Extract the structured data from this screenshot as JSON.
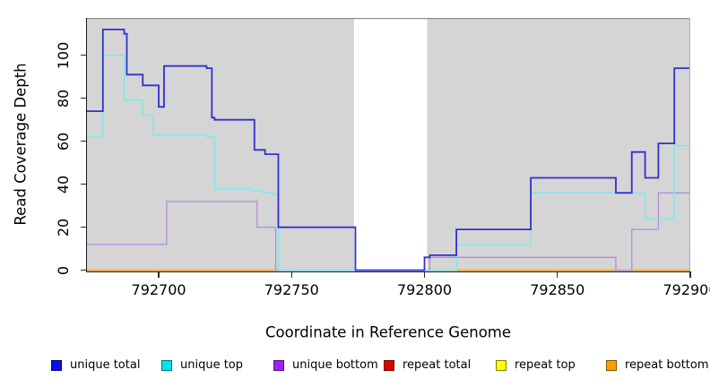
{
  "figure": {
    "y_axis_label": "Read Coverage Depth",
    "x_axis_label": "Coordinate in Reference Genome",
    "y_ticks": [
      "0",
      "20",
      "40",
      "60",
      "80",
      "100"
    ],
    "x_ticks": [
      "792700",
      "792750",
      "792800",
      "792850",
      "792900"
    ]
  },
  "legend": {
    "items": [
      {
        "label": "unique total",
        "color": "#0b0bee"
      },
      {
        "label": "unique top",
        "color": "#00e6f0"
      },
      {
        "label": "unique bottom",
        "color": "#a020f0"
      },
      {
        "label": "repeat total",
        "color": "#e00000"
      },
      {
        "label": "repeat top",
        "color": "#ffff00"
      },
      {
        "label": "repeat bottom",
        "color": "#ffa000"
      }
    ]
  },
  "chart_data": {
    "type": "line",
    "subtype": "step",
    "xlabel": "Coordinate in Reference Genome",
    "ylabel": "Read Coverage Depth",
    "xlim": [
      792673,
      792900
    ],
    "ylim": [
      0,
      117
    ],
    "x_tick_values": [
      792700,
      792750,
      792800,
      792850,
      792900
    ],
    "y_tick_values": [
      0,
      20,
      40,
      60,
      80,
      100
    ],
    "grid": false,
    "legend_position": "bottom",
    "plot_background": "#d5d5d5",
    "masked_region": {
      "x_start": 792773.5,
      "x_end": 792801,
      "color": "#ffffff"
    },
    "series": [
      {
        "name": "repeat total",
        "color": "#dd2020",
        "line_width": 1.2,
        "points": [
          [
            792673,
            0
          ]
        ]
      },
      {
        "name": "repeat top",
        "color": "#f0e800",
        "line_width": 1.2,
        "points": [
          [
            792673,
            0
          ]
        ]
      },
      {
        "name": "repeat bottom",
        "color": "#ff9d1c",
        "line_width": 1.6,
        "points": [
          [
            792673,
            0
          ]
        ]
      },
      {
        "name": "unique bottom",
        "color": "#b48cdb",
        "line_width": 1.3,
        "points": [
          [
            792673,
            12
          ],
          [
            792703,
            32
          ],
          [
            792737,
            20
          ],
          [
            792744,
            0
          ],
          [
            792802,
            6
          ],
          [
            792872,
            0
          ],
          [
            792878,
            19
          ],
          [
            792888,
            36
          ]
        ]
      },
      {
        "name": "unique top",
        "color": "#79e9ee",
        "line_width": 1.4,
        "points": [
          [
            792673,
            62
          ],
          [
            792679,
            100
          ],
          [
            792687,
            79
          ],
          [
            792694,
            72
          ],
          [
            792698,
            63
          ],
          [
            792718,
            62
          ],
          [
            792721,
            38
          ],
          [
            792735,
            37
          ],
          [
            792739,
            36
          ],
          [
            792743,
            35
          ],
          [
            792745,
            0
          ],
          [
            792812,
            12
          ],
          [
            792840,
            36
          ],
          [
            792883,
            24
          ],
          [
            792894,
            58
          ]
        ]
      },
      {
        "name": "unique total",
        "color": "#3030d0",
        "line_width": 1.8,
        "points": [
          [
            792673,
            74
          ],
          [
            792679,
            112
          ],
          [
            792687,
            110
          ],
          [
            792688,
            91
          ],
          [
            792694,
            86
          ],
          [
            792700,
            76
          ],
          [
            792702,
            95
          ],
          [
            792718,
            94
          ],
          [
            792720,
            71
          ],
          [
            792721,
            70
          ],
          [
            792736,
            56
          ],
          [
            792740,
            54
          ],
          [
            792745,
            20
          ],
          [
            792774,
            0
          ],
          [
            792800,
            6
          ],
          [
            792802,
            7
          ],
          [
            792812,
            19
          ],
          [
            792840,
            43
          ],
          [
            792872,
            36
          ],
          [
            792878,
            55
          ],
          [
            792883,
            43
          ],
          [
            792888,
            59
          ],
          [
            792894,
            94
          ]
        ]
      }
    ]
  }
}
